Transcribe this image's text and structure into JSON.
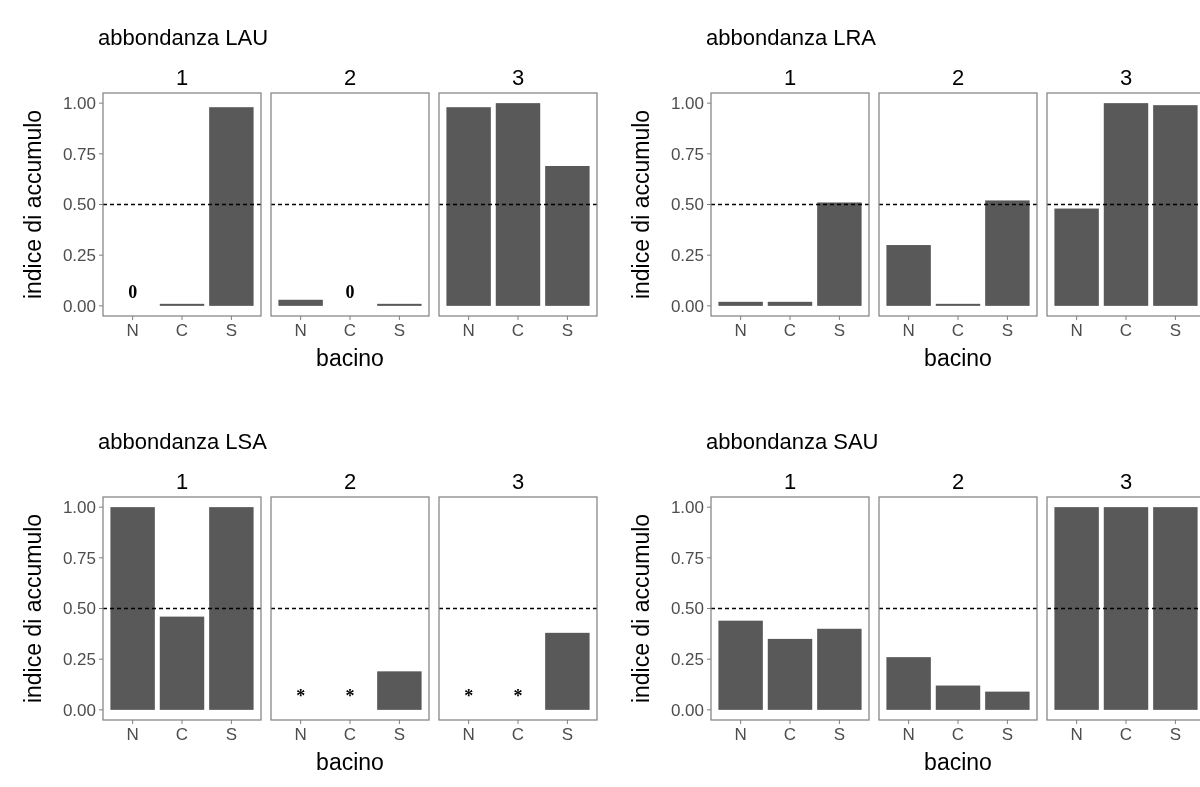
{
  "chart_data": [
    {
      "type": "bar",
      "title": "abbondanza LAU",
      "subtitle": "1",
      "ylabel": "indice di accumulo",
      "categories": [
        "N",
        "C",
        "S"
      ],
      "values": [
        0,
        0.01,
        0.98
      ],
      "value_labels": [
        "0",
        null,
        null
      ],
      "color": "#595959",
      "ylim": [
        -0.05,
        1.05
      ],
      "yticks": [
        {
          "value": 0,
          "label": "0.00"
        },
        {
          "value": 0.25,
          "label": "0.25"
        },
        {
          "value": 0.5,
          "label": "0.50"
        },
        {
          "value": 0.75,
          "label": "0.75"
        },
        {
          "value": 1,
          "label": "1.00"
        }
      ],
      "ref_lines": [
        {
          "axis": "y",
          "value": 0.5,
          "line_style": "dashed",
          "color": "#000000"
        }
      ],
      "grid": false
    },
    {
      "type": "bar",
      "subtitle": "2",
      "xlabel": "bacino",
      "categories": [
        "N",
        "C",
        "S"
      ],
      "values": [
        0.03,
        0,
        0.01
      ],
      "value_labels": [
        null,
        "0",
        null
      ],
      "color": "#595959",
      "ylim": [
        -0.05,
        1.05
      ],
      "tick_labels": "x",
      "ref_lines": [
        {
          "axis": "y",
          "value": 0.5,
          "line_style": "dashed",
          "color": "#000000"
        }
      ],
      "grid": false
    },
    {
      "type": "bar",
      "subtitle": "3",
      "categories": [
        "N",
        "C",
        "S"
      ],
      "values": [
        0.98,
        1.0,
        0.69
      ],
      "color": "#595959",
      "ylim": [
        -0.05,
        1.05
      ],
      "tick_labels": "x",
      "ref_lines": [
        {
          "axis": "y",
          "value": 0.5,
          "line_style": "dashed",
          "color": "#000000"
        }
      ],
      "grid": false
    },
    {
      "type": "bar",
      "title": "abbondanza LRA",
      "subtitle": "1",
      "ylabel": "indice di accumulo",
      "categories": [
        "N",
        "C",
        "S"
      ],
      "values": [
        0.02,
        0.02,
        0.51
      ],
      "color": "#595959",
      "ylim": [
        -0.05,
        1.05
      ],
      "yticks": [
        {
          "value": 0,
          "label": "0.00"
        },
        {
          "value": 0.25,
          "label": "0.25"
        },
        {
          "value": 0.5,
          "label": "0.50"
        },
        {
          "value": 0.75,
          "label": "0.75"
        },
        {
          "value": 1,
          "label": "1.00"
        }
      ],
      "ref_lines": [
        {
          "axis": "y",
          "value": 0.5,
          "line_style": "dashed",
          "color": "#000000"
        }
      ],
      "grid": false
    },
    {
      "type": "bar",
      "subtitle": "2",
      "xlabel": "bacino",
      "categories": [
        "N",
        "C",
        "S"
      ],
      "values": [
        0.3,
        0.01,
        0.52
      ],
      "color": "#595959",
      "ylim": [
        -0.05,
        1.05
      ],
      "tick_labels": "x",
      "ref_lines": [
        {
          "axis": "y",
          "value": 0.5,
          "line_style": "dashed",
          "color": "#000000"
        }
      ],
      "grid": false
    },
    {
      "type": "bar",
      "subtitle": "3",
      "categories": [
        "N",
        "C",
        "S"
      ],
      "values": [
        0.48,
        1.0,
        0.99
      ],
      "color": "#595959",
      "ylim": [
        -0.05,
        1.05
      ],
      "tick_labels": "x",
      "ref_lines": [
        {
          "axis": "y",
          "value": 0.5,
          "line_style": "dashed",
          "color": "#000000"
        }
      ],
      "grid": false
    },
    {
      "type": "bar",
      "title": "abbondanza LSA",
      "subtitle": "1",
      "ylabel": "indice di accumulo",
      "categories": [
        "N",
        "C",
        "S"
      ],
      "values": [
        1.0,
        0.46,
        1.0
      ],
      "color": "#595959",
      "ylim": [
        -0.05,
        1.05
      ],
      "yticks": [
        {
          "value": 0,
          "label": "0.00"
        },
        {
          "value": 0.25,
          "label": "0.25"
        },
        {
          "value": 0.5,
          "label": "0.50"
        },
        {
          "value": 0.75,
          "label": "0.75"
        },
        {
          "value": 1,
          "label": "1.00"
        }
      ],
      "ref_lines": [
        {
          "axis": "y",
          "value": 0.5,
          "line_style": "dashed",
          "color": "#000000"
        }
      ],
      "grid": false
    },
    {
      "type": "bar",
      "subtitle": "2",
      "xlabel": "bacino",
      "categories": [
        "N",
        "C",
        "S"
      ],
      "values": [
        null,
        null,
        0.19
      ],
      "value_labels": [
        "*",
        "*",
        null
      ],
      "color": "#595959",
      "ylim": [
        -0.05,
        1.05
      ],
      "tick_labels": "x",
      "ref_lines": [
        {
          "axis": "y",
          "value": 0.5,
          "line_style": "dashed",
          "color": "#000000"
        }
      ],
      "grid": false
    },
    {
      "type": "bar",
      "subtitle": "3",
      "categories": [
        "N",
        "C",
        "S"
      ],
      "values": [
        null,
        null,
        0.38
      ],
      "value_labels": [
        "*",
        "*",
        null
      ],
      "color": "#595959",
      "ylim": [
        -0.05,
        1.05
      ],
      "tick_labels": "x",
      "ref_lines": [
        {
          "axis": "y",
          "value": 0.5,
          "line_style": "dashed",
          "color": "#000000"
        }
      ],
      "grid": false
    },
    {
      "type": "bar",
      "title": "abbondanza SAU",
      "subtitle": "1",
      "ylabel": "indice di accumulo",
      "categories": [
        "N",
        "C",
        "S"
      ],
      "values": [
        0.44,
        0.35,
        0.4
      ],
      "color": "#595959",
      "ylim": [
        -0.05,
        1.05
      ],
      "yticks": [
        {
          "value": 0,
          "label": "0.00"
        },
        {
          "value": 0.25,
          "label": "0.25"
        },
        {
          "value": 0.5,
          "label": "0.50"
        },
        {
          "value": 0.75,
          "label": "0.75"
        },
        {
          "value": 1,
          "label": "1.00"
        }
      ],
      "ref_lines": [
        {
          "axis": "y",
          "value": 0.5,
          "line_style": "dashed",
          "color": "#000000"
        }
      ],
      "grid": false
    },
    {
      "type": "bar",
      "subtitle": "2",
      "xlabel": "bacino",
      "categories": [
        "N",
        "C",
        "S"
      ],
      "values": [
        0.26,
        0.12,
        0.09
      ],
      "color": "#595959",
      "ylim": [
        -0.05,
        1.05
      ],
      "tick_labels": "x",
      "ref_lines": [
        {
          "axis": "y",
          "value": 0.5,
          "line_style": "dashed",
          "color": "#000000"
        }
      ],
      "grid": false
    },
    {
      "type": "bar",
      "subtitle": "3",
      "categories": [
        "N",
        "C",
        "S"
      ],
      "values": [
        1.0,
        1.0,
        1.0
      ],
      "color": "#595959",
      "ylim": [
        -0.05,
        1.05
      ],
      "tick_labels": "x",
      "ref_lines": [
        {
          "axis": "y",
          "value": 0.5,
          "line_style": "dashed",
          "color": "#000000"
        }
      ],
      "grid": false
    }
  ]
}
